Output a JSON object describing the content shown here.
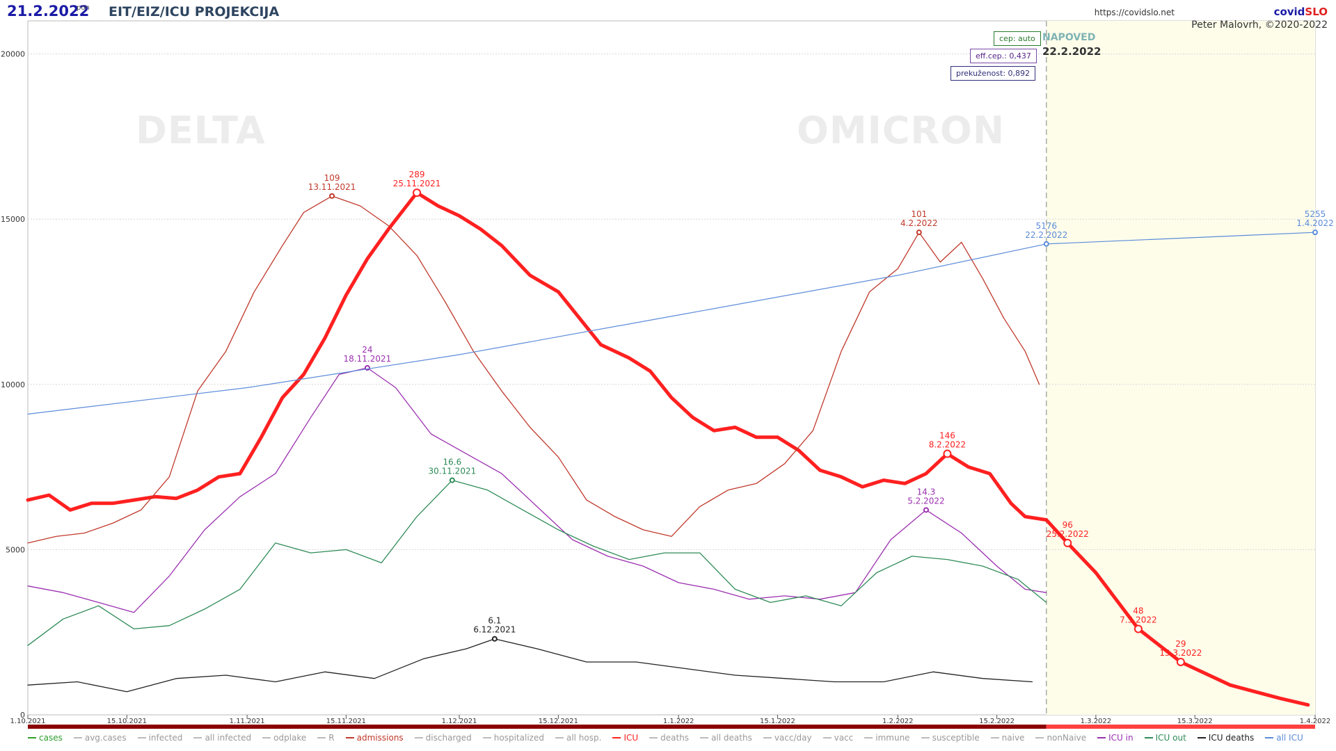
{
  "header": {
    "date": "21.2.2022",
    "weekday": "pon",
    "title": "EIT/EIZ/ICU PROJEKCIJA",
    "url": "https://covidslo.net",
    "brand_part1": "covid",
    "brand_part2": "SLO",
    "author": "Peter Malovrh, ©2020-2022"
  },
  "infoboxes": {
    "vaccination": "cep: auto",
    "eff_vaccination": "eff.cep.: 0,437",
    "immunity": "prekuženost: 0,892"
  },
  "forecast": {
    "title": "NAPOVED",
    "date": "22.2.2022"
  },
  "variants": {
    "delta": "DELTA",
    "omicron": "OMICRON"
  },
  "legend": [
    {
      "label": "cases",
      "color": "#2e9e2e"
    },
    {
      "label": "avg.cases",
      "color": "#bbbbbb"
    },
    {
      "label": "infected",
      "color": "#bbbbbb"
    },
    {
      "label": "all infected",
      "color": "#bbbbbb"
    },
    {
      "label": "odplake",
      "color": "#bbbbbb"
    },
    {
      "label": "R",
      "color": "#bbbbbb"
    },
    {
      "label": "admissions",
      "color": "#c0392b"
    },
    {
      "label": "discharged",
      "color": "#bbbbbb"
    },
    {
      "label": "hospitalized",
      "color": "#bbbbbb"
    },
    {
      "label": "all hosp.",
      "color": "#bbbbbb"
    },
    {
      "label": "ICU",
      "color": "#ff2020"
    },
    {
      "label": "deaths",
      "color": "#bbbbbb"
    },
    {
      "label": "all deaths",
      "color": "#bbbbbb"
    },
    {
      "label": "vacc/day",
      "color": "#bbbbbb"
    },
    {
      "label": "vacc",
      "color": "#bbbbbb"
    },
    {
      "label": "immune",
      "color": "#bbbbbb"
    },
    {
      "label": "susceptible",
      "color": "#bbbbbb"
    },
    {
      "label": "naive",
      "color": "#bbbbbb"
    },
    {
      "label": "nonNaive",
      "color": "#bbbbbb"
    },
    {
      "label": "ICU in",
      "color": "#9b30b0"
    },
    {
      "label": "ICU out",
      "color": "#2e8b57"
    },
    {
      "label": "ICU deaths",
      "color": "#222222"
    },
    {
      "label": "all ICU",
      "color": "#5b8bd9"
    }
  ],
  "chart_data": {
    "type": "line",
    "x_start": "1.10.2021",
    "x_end": "1.4.2022",
    "x_ticks": [
      "1.10.2021",
      "15.10.2021",
      "1.11.2021",
      "15.11.2021",
      "1.12.2021",
      "15.12.2021",
      "1.1.2022",
      "15.1.2022",
      "1.2.2022",
      "15.2.2022",
      "1.3.2022",
      "15.3.2022",
      "1.4.2022"
    ],
    "forecast_start": "22.2.2022",
    "y_ticks": [
      0,
      5000,
      10000,
      15000,
      20000
    ],
    "ylim": [
      0,
      21000
    ],
    "grid": true,
    "series": [
      {
        "name": "ICU",
        "color": "#ff2020",
        "points": [
          [
            "1.10.2021",
            6500
          ],
          [
            "4.10.2021",
            6650
          ],
          [
            "7.10.2021",
            6200
          ],
          [
            "10.10.2021",
            6400
          ],
          [
            "13.10.2021",
            6400
          ],
          [
            "16.10.2021",
            6500
          ],
          [
            "19.10.2021",
            6600
          ],
          [
            "22.10.2021",
            6550
          ],
          [
            "25.10.2021",
            6800
          ],
          [
            "28.10.2021",
            7200
          ],
          [
            "31.10.2021",
            7300
          ],
          [
            "3.11.2021",
            8400
          ],
          [
            "6.11.2021",
            9600
          ],
          [
            "9.11.2021",
            10300
          ],
          [
            "12.11.2021",
            11400
          ],
          [
            "15.11.2021",
            12700
          ],
          [
            "18.11.2021",
            13800
          ],
          [
            "21.11.2021",
            14700
          ],
          [
            "25.11.2021",
            15800
          ],
          [
            "28.11.2021",
            15400
          ],
          [
            "1.12.2021",
            15100
          ],
          [
            "4.12.2021",
            14700
          ],
          [
            "7.12.2021",
            14200
          ],
          [
            "11.12.2021",
            13300
          ],
          [
            "15.12.2021",
            12800
          ],
          [
            "18.12.2021",
            12000
          ],
          [
            "21.12.2021",
            11200
          ],
          [
            "25.12.2021",
            10800
          ],
          [
            "28.12.2021",
            10400
          ],
          [
            "31.12.2021",
            9600
          ],
          [
            "3.1.2022",
            9000
          ],
          [
            "6.1.2022",
            8600
          ],
          [
            "9.1.2022",
            8700
          ],
          [
            "12.1.2022",
            8400
          ],
          [
            "15.1.2022",
            8400
          ],
          [
            "18.1.2022",
            8000
          ],
          [
            "21.1.2022",
            7400
          ],
          [
            "24.1.2022",
            7200
          ],
          [
            "27.1.2022",
            6900
          ],
          [
            "30.1.2022",
            7100
          ],
          [
            "2.2.2022",
            7000
          ],
          [
            "5.2.2022",
            7300
          ],
          [
            "8.2.2022",
            7900
          ],
          [
            "11.2.2022",
            7500
          ],
          [
            "14.2.2022",
            7300
          ],
          [
            "17.2.2022",
            6400
          ],
          [
            "19.2.2022",
            6000
          ],
          [
            "22.2.2022",
            5900
          ]
        ],
        "labels": [
          [
            "25.11.2021",
            "289"
          ],
          [
            "8.2.2022",
            "146"
          ]
        ]
      },
      {
        "name": "ICU (napoved)",
        "color": "#ff2020",
        "points": [
          [
            "22.2.2022",
            5900
          ],
          [
            "25.2.2022",
            5200
          ],
          [
            "1.3.2022",
            4300
          ],
          [
            "7.3.2022",
            2600
          ],
          [
            "13.3.2022",
            1600
          ],
          [
            "20.3.2022",
            900
          ],
          [
            "27.3.2022",
            500
          ],
          [
            "31.3.2022",
            300
          ]
        ],
        "labels": [
          [
            "25.2.2022",
            "96"
          ],
          [
            "7.3.2022",
            "48"
          ],
          [
            "13.3.2022",
            "29"
          ]
        ]
      },
      {
        "name": "admissions",
        "color": "#c0392b",
        "points": [
          [
            "1.10.2021",
            5200
          ],
          [
            "5.10.2021",
            5400
          ],
          [
            "9.10.2021",
            5500
          ],
          [
            "13.10.2021",
            5800
          ],
          [
            "17.10.2021",
            6200
          ],
          [
            "21.10.2021",
            7200
          ],
          [
            "25.10.2021",
            9800
          ],
          [
            "29.10.2021",
            11000
          ],
          [
            "2.11.2021",
            12800
          ],
          [
            "6.11.2021",
            14200
          ],
          [
            "9.11.2021",
            15200
          ],
          [
            "13.11.2021",
            15700
          ],
          [
            "17.11.2021",
            15400
          ],
          [
            "21.11.2021",
            14800
          ],
          [
            "25.11.2021",
            13900
          ],
          [
            "29.11.2021",
            12500
          ],
          [
            "3.12.2021",
            11000
          ],
          [
            "7.12.2021",
            9800
          ],
          [
            "11.12.2021",
            8700
          ],
          [
            "15.12.2021",
            7800
          ],
          [
            "19.12.2021",
            6500
          ],
          [
            "23.12.2021",
            6000
          ],
          [
            "27.12.2021",
            5600
          ],
          [
            "31.12.2021",
            5400
          ],
          [
            "4.1.2022",
            6300
          ],
          [
            "8.1.2022",
            6800
          ],
          [
            "12.1.2022",
            7000
          ],
          [
            "16.1.2022",
            7600
          ],
          [
            "20.1.2022",
            8600
          ],
          [
            "24.1.2022",
            11000
          ],
          [
            "28.1.2022",
            12800
          ],
          [
            "1.2.2022",
            13500
          ],
          [
            "4.2.2022",
            14600
          ],
          [
            "7.2.2022",
            13700
          ],
          [
            "10.2.2022",
            14300
          ],
          [
            "13.2.2022",
            13200
          ],
          [
            "16.2.2022",
            12000
          ],
          [
            "19.2.2022",
            11000
          ],
          [
            "21.2.2022",
            10000
          ]
        ],
        "labels": [
          [
            "13.11.2021",
            "109"
          ],
          [
            "4.2.2022",
            "101"
          ]
        ]
      },
      {
        "name": "ICU in",
        "color": "#9b30b0",
        "points": [
          [
            "1.10.2021",
            3900
          ],
          [
            "6.10.2021",
            3700
          ],
          [
            "11.10.2021",
            3400
          ],
          [
            "16.10.2021",
            3100
          ],
          [
            "21.10.2021",
            4200
          ],
          [
            "26.10.2021",
            5600
          ],
          [
            "31.10.2021",
            6600
          ],
          [
            "5.11.2021",
            7300
          ],
          [
            "10.11.2021",
            9000
          ],
          [
            "14.11.2021",
            10300
          ],
          [
            "18.11.2021",
            10500
          ],
          [
            "22.11.2021",
            9900
          ],
          [
            "27.11.2021",
            8500
          ],
          [
            "2.12.2021",
            7900
          ],
          [
            "7.12.2021",
            7300
          ],
          [
            "12.12.2021",
            6300
          ],
          [
            "17.12.2021",
            5300
          ],
          [
            "22.12.2021",
            4800
          ],
          [
            "27.12.2021",
            4500
          ],
          [
            "1.1.2022",
            4000
          ],
          [
            "6.1.2022",
            3800
          ],
          [
            "11.1.2022",
            3500
          ],
          [
            "16.1.2022",
            3600
          ],
          [
            "21.1.2022",
            3500
          ],
          [
            "26.1.2022",
            3700
          ],
          [
            "31.1.2022",
            5300
          ],
          [
            "5.2.2022",
            6200
          ],
          [
            "10.2.2022",
            5500
          ],
          [
            "15.2.2022",
            4500
          ],
          [
            "19.2.2022",
            3800
          ],
          [
            "22.2.2022",
            3700
          ]
        ],
        "labels": [
          [
            "18.11.2021",
            "24"
          ],
          [
            "5.2.2022",
            "14.3"
          ]
        ]
      },
      {
        "name": "ICU out",
        "color": "#2e8b57",
        "points": [
          [
            "1.10.2021",
            2100
          ],
          [
            "6.10.2021",
            2900
          ],
          [
            "11.10.2021",
            3300
          ],
          [
            "16.10.2021",
            2600
          ],
          [
            "21.10.2021",
            2700
          ],
          [
            "26.10.2021",
            3200
          ],
          [
            "31.10.2021",
            3800
          ],
          [
            "5.11.2021",
            5200
          ],
          [
            "10.11.2021",
            4900
          ],
          [
            "15.11.2021",
            5000
          ],
          [
            "20.11.2021",
            4600
          ],
          [
            "25.11.2021",
            6000
          ],
          [
            "30.11.2021",
            7100
          ],
          [
            "5.12.2021",
            6800
          ],
          [
            "10.12.2021",
            6200
          ],
          [
            "15.12.2021",
            5600
          ],
          [
            "20.12.2021",
            5100
          ],
          [
            "25.12.2021",
            4700
          ],
          [
            "30.12.2021",
            4900
          ],
          [
            "4.1.2022",
            4900
          ],
          [
            "9.1.2022",
            3800
          ],
          [
            "14.1.2022",
            3400
          ],
          [
            "19.1.2022",
            3600
          ],
          [
            "24.1.2022",
            3300
          ],
          [
            "29.1.2022",
            4300
          ],
          [
            "3.2.2022",
            4800
          ],
          [
            "8.2.2022",
            4700
          ],
          [
            "13.2.2022",
            4500
          ],
          [
            "18.2.2022",
            4100
          ],
          [
            "22.2.2022",
            3400
          ]
        ],
        "labels": [
          [
            "30.11.2021",
            "16.6"
          ]
        ]
      },
      {
        "name": "ICU deaths",
        "color": "#222222",
        "points": [
          [
            "1.10.2021",
            900
          ],
          [
            "8.10.2021",
            1000
          ],
          [
            "15.10.2021",
            700
          ],
          [
            "22.10.2021",
            1100
          ],
          [
            "29.10.2021",
            1200
          ],
          [
            "5.11.2021",
            1000
          ],
          [
            "12.11.2021",
            1300
          ],
          [
            "19.11.2021",
            1100
          ],
          [
            "26.11.2021",
            1700
          ],
          [
            "2.12.2021",
            2000
          ],
          [
            "6.12.2021",
            2300
          ],
          [
            "12.12.2021",
            2000
          ],
          [
            "19.12.2021",
            1600
          ],
          [
            "26.12.2021",
            1600
          ],
          [
            "2.1.2022",
            1400
          ],
          [
            "9.1.2022",
            1200
          ],
          [
            "16.1.2022",
            1100
          ],
          [
            "23.1.2022",
            1000
          ],
          [
            "30.1.2022",
            1000
          ],
          [
            "6.2.2022",
            1300
          ],
          [
            "13.2.2022",
            1100
          ],
          [
            "20.2.2022",
            1000
          ]
        ],
        "labels": [
          [
            "6.12.2021",
            "6.1"
          ]
        ]
      },
      {
        "name": "all ICU",
        "color": "#5b8bd9",
        "points": [
          [
            "1.10.2021",
            9100
          ],
          [
            "1.11.2021",
            9900
          ],
          [
            "1.12.2021",
            10900
          ],
          [
            "1.1.2022",
            12100
          ],
          [
            "1.2.2022",
            13300
          ],
          [
            "22.2.2022",
            14250
          ],
          [
            "1.4.2022",
            14600
          ]
        ],
        "labels": [
          [
            "22.2.2022",
            "5176"
          ],
          [
            "1.4.2022",
            "5255"
          ]
        ]
      }
    ]
  }
}
